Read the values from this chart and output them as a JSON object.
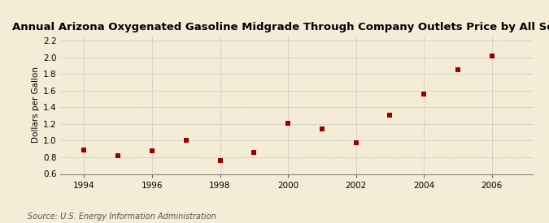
{
  "title": "Annual Arizona Oxygenated Gasoline Midgrade Through Company Outlets Price by All Sellers",
  "ylabel": "Dollars per Gallon",
  "source": "Source: U.S. Energy Information Administration",
  "background_color": "#f5ecd7",
  "marker_color": "#990000",
  "years": [
    1994,
    1995,
    1996,
    1997,
    1998,
    1999,
    2000,
    2001,
    2002,
    2003,
    2004,
    2005,
    2006
  ],
  "values": [
    0.89,
    0.82,
    0.88,
    1.0,
    0.76,
    0.86,
    1.21,
    1.14,
    0.97,
    1.31,
    1.56,
    1.85,
    2.02
  ],
  "xlim": [
    1993.3,
    2007.2
  ],
  "ylim": [
    0.6,
    2.26
  ],
  "yticks": [
    0.6,
    0.8,
    1.0,
    1.2,
    1.4,
    1.6,
    1.8,
    2.0,
    2.2
  ],
  "xticks": [
    1994,
    1996,
    1998,
    2000,
    2002,
    2004,
    2006
  ],
  "title_fontsize": 9.5,
  "label_fontsize": 7.5,
  "tick_fontsize": 7.5,
  "source_fontsize": 7,
  "grid_color": "#bbbbbb",
  "marker_size": 18
}
